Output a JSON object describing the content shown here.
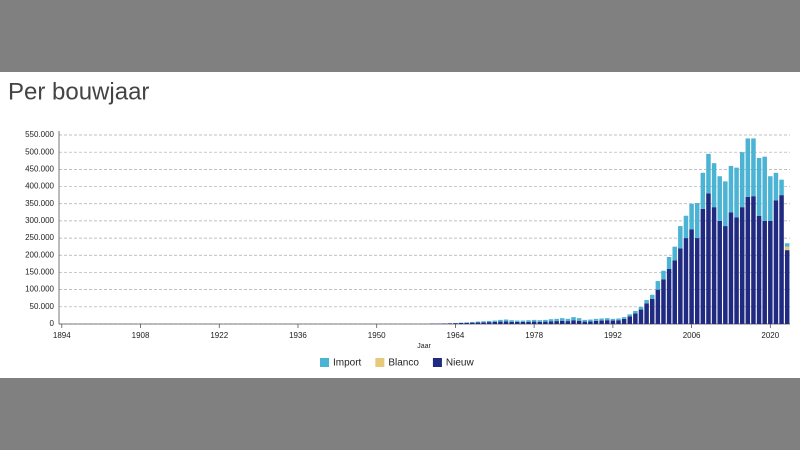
{
  "chart_data": {
    "type": "stacked_bar",
    "title": "Per bouwjaar",
    "x_label": "Jaar",
    "x": [
      1960,
      1961,
      1962,
      1963,
      1964,
      1965,
      1966,
      1967,
      1968,
      1969,
      1970,
      1971,
      1972,
      1973,
      1974,
      1975,
      1976,
      1977,
      1978,
      1979,
      1980,
      1981,
      1982,
      1983,
      1984,
      1985,
      1986,
      1987,
      1988,
      1989,
      1990,
      1991,
      1992,
      1993,
      1994,
      1995,
      1996,
      1997,
      1998,
      1999,
      2000,
      2001,
      2002,
      2003,
      2004,
      2005,
      2006,
      2007,
      2008,
      2009,
      2010,
      2011,
      2012,
      2013,
      2014,
      2015,
      2016,
      2017,
      2018,
      2019,
      2020,
      2021,
      2022,
      2023
    ],
    "series": [
      {
        "name": "Nieuw",
        "color": "#1f2a80",
        "values": [
          1000,
          1000,
          1500,
          2000,
          2500,
          3000,
          3500,
          4000,
          4500,
          5000,
          5500,
          6000,
          7000,
          7500,
          6500,
          6000,
          6000,
          6500,
          7000,
          6500,
          7000,
          8000,
          8500,
          9500,
          8500,
          11000,
          9500,
          7000,
          7500,
          9000,
          10000,
          11000,
          10000,
          11000,
          15000,
          22000,
          31000,
          42000,
          60000,
          73000,
          100000,
          130000,
          160000,
          185000,
          220000,
          250000,
          275000,
          250000,
          335000,
          380000,
          340000,
          300000,
          285000,
          325000,
          310000,
          340000,
          370000,
          372000,
          315000,
          300000,
          300000,
          360000,
          375000,
          215000
        ]
      },
      {
        "name": "Blanco",
        "color": "#e6c97a",
        "values": [
          0,
          0,
          0,
          0,
          0,
          0,
          0,
          0,
          0,
          0,
          0,
          0,
          0,
          0,
          0,
          0,
          0,
          0,
          0,
          0,
          0,
          0,
          0,
          0,
          0,
          0,
          0,
          0,
          0,
          0,
          0,
          0,
          0,
          0,
          0,
          0,
          0,
          0,
          0,
          0,
          0,
          0,
          0,
          0,
          0,
          0,
          0,
          0,
          0,
          0,
          0,
          0,
          0,
          0,
          0,
          0,
          0,
          0,
          0,
          0,
          0,
          0,
          0,
          10000
        ]
      },
      {
        "name": "Import",
        "color": "#4bb3d4",
        "values": [
          0,
          0,
          0,
          0,
          500,
          1000,
          1500,
          2000,
          2500,
          3000,
          3500,
          4000,
          5000,
          5500,
          4500,
          4000,
          4000,
          4500,
          5000,
          4500,
          5000,
          6000,
          6500,
          7500,
          6500,
          9000,
          7500,
          5000,
          5500,
          6000,
          6000,
          6000,
          5000,
          5000,
          5000,
          6000,
          7000,
          8000,
          10000,
          12000,
          25000,
          25000,
          35000,
          40000,
          65000,
          65000,
          75000,
          102000,
          105000,
          115000,
          128000,
          130000,
          130000,
          135000,
          145000,
          160000,
          170000,
          168000,
          168000,
          187000,
          130000,
          80000,
          45000,
          10000
        ]
      }
    ],
    "legend_order": [
      "Import",
      "Blanco",
      "Nieuw"
    ],
    "xlim": [
      1893.5,
      2023.5
    ],
    "xticks": [
      1894,
      1908,
      1922,
      1936,
      1950,
      1964,
      1978,
      1992,
      2006,
      2020
    ],
    "ylim": [
      0,
      550000
    ],
    "yticks": [
      0,
      {
        "value": 50000,
        "label": "50.000"
      },
      {
        "value": 100000,
        "label": "100.000"
      },
      {
        "value": 150000,
        "label": "150.000"
      },
      {
        "value": 200000,
        "label": "200.000"
      },
      {
        "value": 250000,
        "label": "250.000"
      },
      {
        "value": 300000,
        "label": "300.000"
      },
      {
        "value": 350000,
        "label": "350.000"
      },
      {
        "value": 400000,
        "label": "400.000"
      },
      {
        "value": 450000,
        "label": "450.000"
      },
      {
        "value": 500000,
        "label": "500.000"
      },
      {
        "value": 550000,
        "label": "550.000"
      }
    ],
    "grid": true
  }
}
